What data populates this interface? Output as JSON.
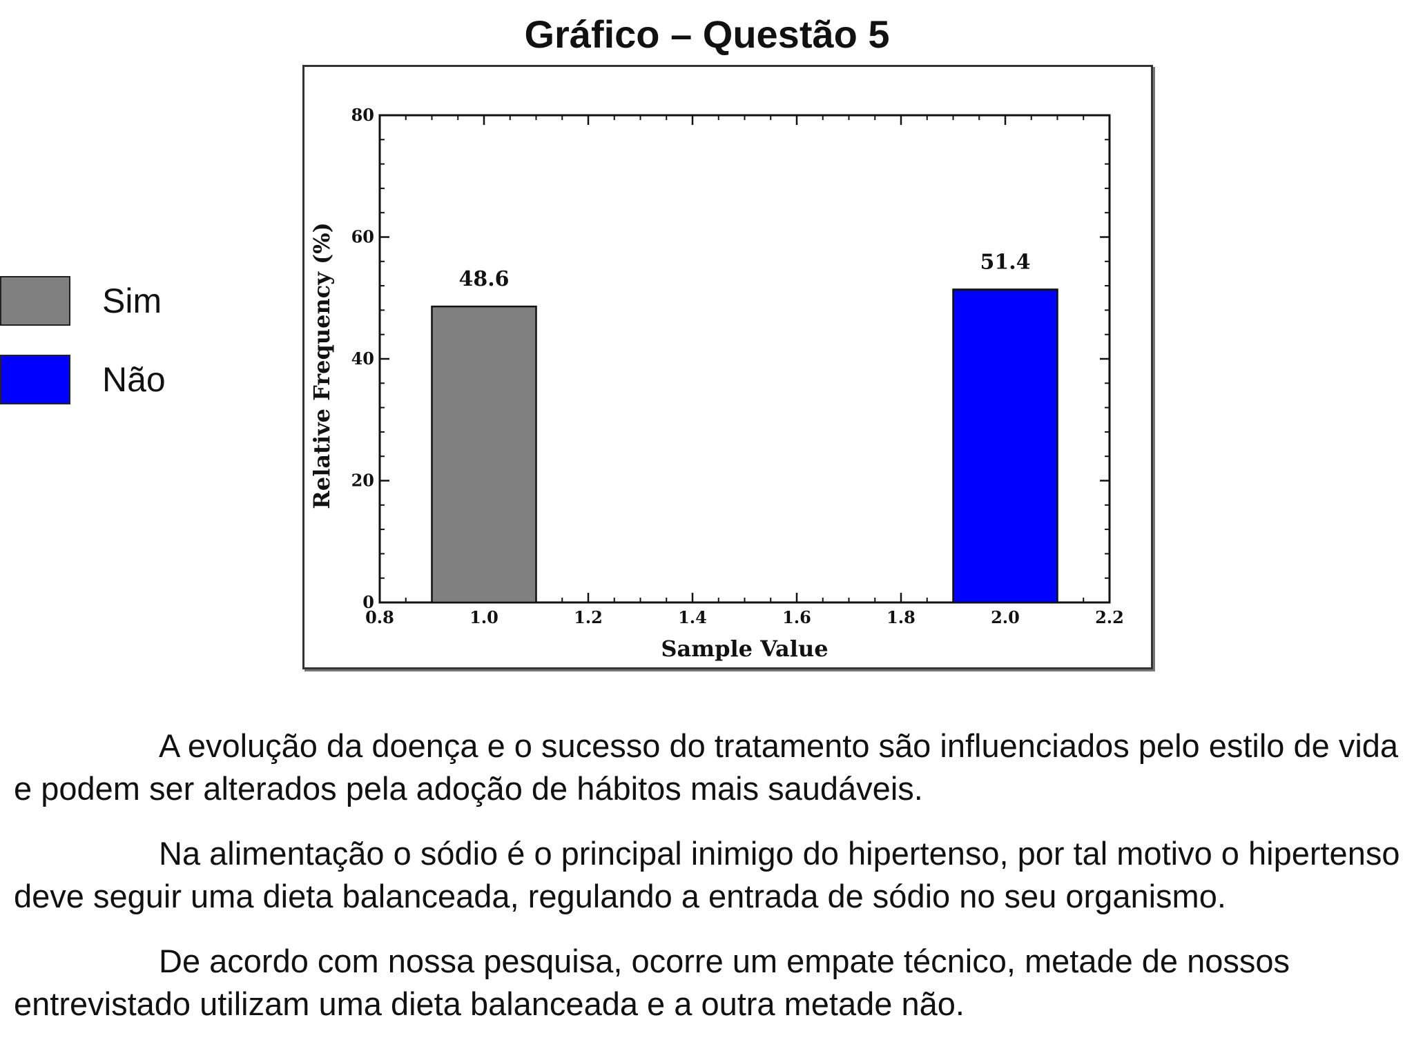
{
  "page": {
    "title": "Gráfico – Questão 5"
  },
  "legend": {
    "items": [
      {
        "label": "Sim",
        "color": "#808080"
      },
      {
        "label": "Não",
        "color": "#0000ff"
      }
    ]
  },
  "chart_data": {
    "type": "bar",
    "xlabel": "Sample Value",
    "ylabel": "Relative Frequency (%)",
    "xlim": [
      0.8,
      2.2
    ],
    "ylim": [
      0,
      80
    ],
    "x_ticks": [
      "0.8",
      "1.0",
      "1.2",
      "1.4",
      "1.6",
      "1.8",
      "2.0",
      "2.2"
    ],
    "y_ticks": [
      "0",
      "20",
      "40",
      "60",
      "80"
    ],
    "bar_width": 0.2,
    "bars": [
      {
        "x": 1.0,
        "value": 48.6,
        "label": "48.6",
        "color": "#808080",
        "legend": "Sim"
      },
      {
        "x": 2.0,
        "value": 51.4,
        "label": "51.4",
        "color": "#0000ff",
        "legend": "Não"
      }
    ],
    "grid": false,
    "legend_placement": "left"
  },
  "body": {
    "paragraphs": [
      "A evolução da doença e o sucesso do tratamento são influenciados pelo estilo de vida e podem ser alterados pela adoção de hábitos mais saudáveis.",
      "Na alimentação o sódio é o principal inimigo do hipertenso, por tal motivo o hipertenso deve seguir uma dieta balanceada, regulando a entrada de sódio no seu organismo.",
      "De acordo com nossa pesquisa, ocorre um empate técnico, metade de nossos entrevistado utilizam uma dieta balanceada e a outra metade não."
    ]
  }
}
